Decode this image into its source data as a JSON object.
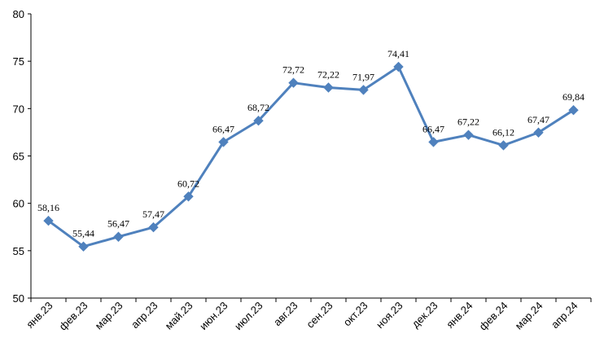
{
  "chart_data": {
    "type": "line",
    "title": "",
    "xlabel": "",
    "ylabel": "",
    "categories": [
      "янв.23",
      "фев.23",
      "мар.23",
      "апр.23",
      "май.23",
      "июн.23",
      "июл.23",
      "авг.23",
      "сен.23",
      "окт.23",
      "ноя.23",
      "дек.23",
      "янв.24",
      "фев.24",
      "мар.24",
      "апр.24"
    ],
    "series": [
      {
        "values": [
          58.16,
          55.44,
          56.47,
          57.47,
          60.72,
          66.47,
          68.72,
          72.72,
          72.22,
          71.97,
          74.41,
          66.47,
          67.22,
          66.12,
          67.47,
          69.84
        ],
        "data_labels": [
          "58,16",
          "55,44",
          "56,47",
          "57,47",
          "60,72",
          "66,47",
          "68,72",
          "72,72",
          "72,22",
          "71,97",
          "74,41",
          "66,47",
          "67,22",
          "66,12",
          "67,47",
          "69,84"
        ],
        "color": "#4f81bd",
        "marker": "diamond"
      }
    ],
    "ylim": [
      50,
      80
    ],
    "yticks": [
      "50",
      "55",
      "60",
      "65",
      "70",
      "75",
      "80"
    ],
    "grid": false,
    "legend": "none"
  }
}
